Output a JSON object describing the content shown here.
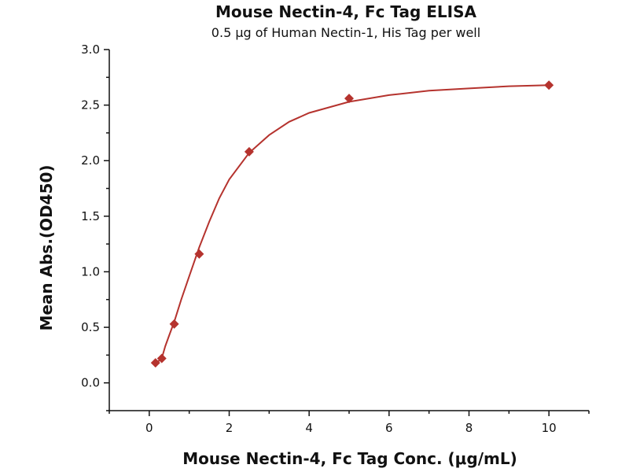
{
  "chart_data": {
    "type": "scatter",
    "title": "Mouse Nectin-4, Fc Tag ELISA",
    "subtitle": "0.5 μg of Human Nectin-1, His Tag per well",
    "xlabel": "Mouse Nectin-4, Fc Tag Conc. (μg/mL)",
    "ylabel": "Mean Abs.(OD450)",
    "xlim": [
      -1,
      11
    ],
    "ylim": [
      -0.25,
      3.0
    ],
    "x_ticks": [
      0,
      2,
      4,
      6,
      8,
      10
    ],
    "y_ticks": [
      0.0,
      0.5,
      1.0,
      1.5,
      2.0,
      2.5,
      3.0
    ],
    "x_tick_labels": [
      "0",
      "2",
      "4",
      "6",
      "8",
      "10"
    ],
    "y_tick_labels": [
      "0.0",
      "0.5",
      "1.0",
      "1.5",
      "2.0",
      "2.5",
      "3.0"
    ],
    "grid": false,
    "marker": "diamond",
    "color": "#b5332e",
    "series": [
      {
        "x": [
          0.156,
          0.313,
          0.625,
          1.25,
          2.5,
          5,
          10
        ],
        "y": [
          0.18,
          0.22,
          0.53,
          1.16,
          2.08,
          2.56,
          2.68
        ]
      }
    ],
    "fit_curve": {
      "x": [
        0.156,
        0.25,
        0.313,
        0.4,
        0.5,
        0.625,
        0.8,
        1.0,
        1.25,
        1.5,
        1.75,
        2.0,
        2.5,
        3.0,
        3.5,
        4.0,
        5.0,
        6.0,
        7.0,
        8.0,
        9.0,
        10.0
      ],
      "y": [
        0.18,
        0.2,
        0.22,
        0.33,
        0.43,
        0.55,
        0.75,
        0.96,
        1.22,
        1.45,
        1.66,
        1.83,
        2.07,
        2.23,
        2.35,
        2.43,
        2.53,
        2.59,
        2.63,
        2.65,
        2.67,
        2.68
      ]
    }
  }
}
